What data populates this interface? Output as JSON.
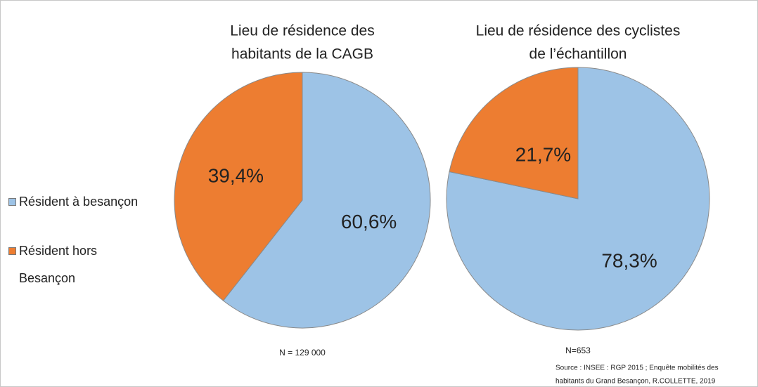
{
  "chart_data": [
    {
      "type": "pie",
      "title": [
        "Lieu de résidence des",
        "habitants de la CAGB"
      ],
      "categories": [
        "Résident à besançon",
        "Résident hors Besançon"
      ],
      "values": [
        60.6,
        39.4
      ],
      "value_labels": [
        "60,6%",
        "39,4%"
      ],
      "colors": [
        "#9dc3e6",
        "#ed7d31"
      ],
      "legend": "left",
      "note": "N = 129 000"
    },
    {
      "type": "pie",
      "title": [
        "Lieu de résidence des cyclistes",
        "de l’échantillon"
      ],
      "categories": [
        "Résident à besançon",
        "Résident hors Besançon"
      ],
      "values": [
        78.3,
        21.7
      ],
      "value_labels": [
        "78,3%",
        "21,7%"
      ],
      "colors": [
        "#9dc3e6",
        "#ed7d31"
      ],
      "note": "N=653"
    }
  ],
  "source": [
    "Source : INSEE : RGP 2015 ; Enquête mobilités des",
    "habitants du Grand Besançon, R.COLLETTE, 2019"
  ]
}
